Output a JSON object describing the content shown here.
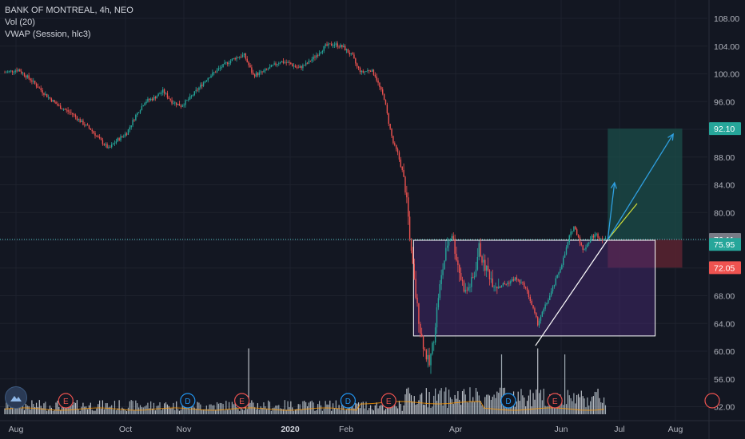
{
  "legend": {
    "symbol": "BANK OF MONTREAL, 4h, NEO",
    "vol": "Vol (20)",
    "vwap": "VWAP (Session, hlc3)"
  },
  "colors": {
    "background": "#131722",
    "up": "#26a69a",
    "down": "#ef5350",
    "grid": "#1e222d",
    "axis_text": "#b2b5be",
    "rect_fill": "#4a2a78",
    "rect_stroke": "#ffffff",
    "target_zone": "#1b4d4a",
    "stop_zone": "#5a2330",
    "price_line": "#4fc3c7",
    "arrow": "#2f9fe0",
    "trendline": "#ffffff",
    "trendline_ext": "#cddc39",
    "vwap": "#ff9800"
  },
  "chart_data": {
    "type": "candlestick",
    "x_ticks": [
      "Aug",
      "Oct",
      "Nov",
      "2020",
      "Feb",
      "Apr",
      "Jun",
      "Jul",
      "Aug"
    ],
    "y_ticks": [
      "108.00",
      "104.00",
      "100.00",
      "96.00",
      "92.00",
      "88.00",
      "84.00",
      "80.00",
      "76.00",
      "72.00",
      "68.00",
      "64.00",
      "60.00",
      "56.00",
      "52.00"
    ],
    "ylim": [
      51,
      109
    ],
    "price_profile": [
      [
        0,
        100.2
      ],
      [
        3,
        100.6
      ],
      [
        6,
        99
      ],
      [
        9,
        97
      ],
      [
        12,
        95.3
      ],
      [
        15,
        94.2
      ],
      [
        17,
        93
      ],
      [
        19,
        92
      ],
      [
        21,
        90.5
      ],
      [
        23,
        89.2
      ],
      [
        25,
        90.5
      ],
      [
        27,
        91.5
      ],
      [
        29,
        94
      ],
      [
        31,
        96
      ],
      [
        33,
        96.5
      ],
      [
        35,
        97.5
      ],
      [
        37,
        96
      ],
      [
        39,
        95.4
      ],
      [
        41,
        96.5
      ],
      [
        43,
        98
      ],
      [
        45,
        99.5
      ],
      [
        47,
        100.5
      ],
      [
        49,
        101.5
      ],
      [
        51,
        102.3
      ],
      [
        53,
        102.7
      ],
      [
        55,
        99.8
      ],
      [
        57,
        100.2
      ],
      [
        59,
        101
      ],
      [
        61,
        101.8
      ],
      [
        63,
        101.5
      ],
      [
        65,
        100.8
      ],
      [
        67,
        101.5
      ],
      [
        69,
        102.7
      ],
      [
        71,
        104
      ],
      [
        73,
        104.3
      ],
      [
        75,
        103.8
      ],
      [
        77,
        102.5
      ],
      [
        78,
        101
      ],
      [
        79,
        100.2
      ],
      [
        81,
        100.6
      ],
      [
        82,
        99.8
      ],
      [
        83,
        98
      ],
      [
        84,
        96.5
      ],
      [
        85,
        93
      ],
      [
        86,
        90
      ],
      [
        87,
        88.5
      ],
      [
        88,
        86
      ],
      [
        89,
        82
      ],
      [
        90,
        74
      ],
      [
        91,
        68
      ],
      [
        92,
        63
      ],
      [
        93,
        60
      ],
      [
        94,
        58
      ],
      [
        95,
        62
      ],
      [
        96,
        68
      ],
      [
        97,
        72
      ],
      [
        98,
        75.5
      ],
      [
        99,
        77
      ],
      [
        100,
        73.5
      ],
      [
        101,
        70.5
      ],
      [
        102,
        68.5
      ],
      [
        103,
        69.5
      ],
      [
        104,
        71
      ],
      [
        105,
        75
      ],
      [
        106,
        72.5
      ],
      [
        107,
        71.5
      ],
      [
        108,
        70
      ],
      [
        109,
        69.5
      ],
      [
        111,
        69.7
      ],
      [
        113,
        70.5
      ],
      [
        115,
        69.5
      ],
      [
        116,
        68
      ],
      [
        117,
        66
      ],
      [
        118,
        64
      ],
      [
        119,
        65.5
      ],
      [
        121,
        68.5
      ],
      [
        123,
        72
      ],
      [
        124,
        74
      ],
      [
        125,
        76.5
      ],
      [
        126,
        78
      ],
      [
        127,
        76.5
      ],
      [
        128,
        74.5
      ],
      [
        129,
        75.5
      ],
      [
        130,
        76.5
      ],
      [
        131,
        76.8
      ],
      [
        132,
        76.3
      ],
      [
        133,
        76.1
      ]
    ],
    "volume_spikes": [
      [
        54,
        0.55
      ],
      [
        110,
        0.5
      ],
      [
        118,
        0.55
      ],
      [
        124,
        0.5
      ]
    ],
    "vwap_level": 0.15,
    "last_price": "76.11",
    "labels": [
      {
        "text": "92.10",
        "price": 92.1,
        "color": "#26a69a"
      },
      {
        "text": "76.11",
        "price": 76.11,
        "color": "#787b86"
      },
      {
        "text": "75.95",
        "price": 75.4,
        "color": "#26a69a"
      },
      {
        "text": "72.05",
        "price": 72.05,
        "color": "#ef5350"
      }
    ],
    "drawings": {
      "range_rect": {
        "x1": 90.5,
        "x2": 144,
        "top": 76.0,
        "bottom": 62.2
      },
      "target_zone": {
        "x1": 133.5,
        "x2": 150,
        "top": 92.1,
        "bottom": 76.1
      },
      "stop_zone": {
        "x1": 133.5,
        "x2": 150,
        "top": 76.1,
        "bottom": 72.05
      },
      "trendline": [
        [
          117.5,
          60.8
        ],
        [
          133.5,
          76.1
        ]
      ],
      "trendline_ext": [
        [
          133.5,
          76.1
        ],
        [
          140,
          81.3
        ]
      ],
      "arrow_short": [
        [
          133.5,
          76.1
        ],
        [
          135,
          84.3
        ]
      ],
      "arrow_long": [
        [
          133.5,
          76.1
        ],
        [
          148,
          91.3
        ]
      ]
    },
    "events": [
      {
        "type": "E",
        "x": 13.5,
        "color": "#ef5350"
      },
      {
        "type": "D",
        "x": 40.5,
        "color": "#2196f3"
      },
      {
        "type": "E",
        "x": 52.5,
        "color": "#ef5350"
      },
      {
        "type": "D",
        "x": 76,
        "color": "#2196f3"
      },
      {
        "type": "E",
        "x": 85,
        "color": "#ef5350"
      },
      {
        "type": "D",
        "x": 111.5,
        "color": "#2196f3"
      },
      {
        "type": "E",
        "x": 121.8,
        "color": "#ef5350"
      }
    ]
  }
}
